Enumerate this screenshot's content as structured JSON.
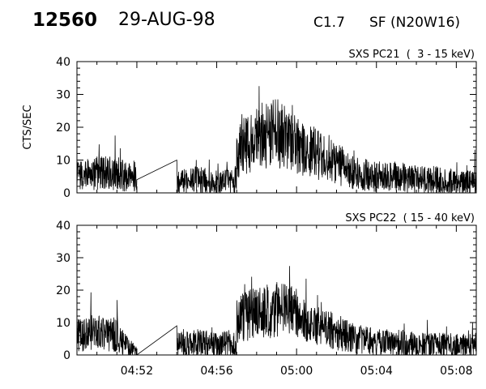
{
  "header": {
    "event_number": "12560",
    "date": "29-AUG-98",
    "goes_class": "C1.7",
    "flare_location": "SF (N20W16)"
  },
  "chart_data": [
    {
      "type": "line",
      "title": "SXS PC21  (  3 - 15 keV)",
      "xlabel": "",
      "ylabel": "CTS/SEC",
      "ylim": [
        0,
        40
      ],
      "yticks": [
        0,
        10,
        20,
        30,
        40
      ],
      "xlim": [
        "04:49",
        "05:09"
      ],
      "xtick_labels": [],
      "grid": false,
      "series": [
        {
          "name": "",
          "x": [
            "04:49",
            "04:50",
            "04:51",
            "04:52",
            "04:52",
            "04:54",
            "04:54",
            "04:55",
            "04:56",
            "04:57",
            "04:57",
            "04:58",
            "04:59",
            "05:00",
            "05:00",
            "05:01",
            "05:02",
            "05:03",
            "05:04",
            "05:05",
            "05:06",
            "05:07",
            "05:08",
            "05:09"
          ],
          "values": [
            5,
            6,
            6,
            4,
            4,
            10,
            3,
            4,
            3,
            4,
            12,
            17,
            18,
            17,
            15,
            12,
            9,
            6,
            5,
            5,
            4,
            4,
            3,
            3
          ]
        }
      ]
    },
    {
      "type": "line",
      "title": "SXS PC22  ( 15 - 40 keV)",
      "xlabel": "",
      "ylabel": "",
      "ylim": [
        0,
        40
      ],
      "yticks": [
        0,
        10,
        20,
        30,
        40
      ],
      "xlim": [
        "04:49",
        "05:09"
      ],
      "xtick_labels": [
        "04:52",
        "04:56",
        "05:00",
        "05:04",
        "05:08"
      ],
      "grid": false,
      "series": [
        {
          "name": "",
          "x": [
            "04:49",
            "04:50",
            "04:51",
            "04:52",
            "04:52",
            "04:54",
            "04:54",
            "04:55",
            "04:56",
            "04:57",
            "04:57",
            "04:58",
            "04:59",
            "05:00",
            "05:00",
            "05:01",
            "05:02",
            "05:03",
            "05:04",
            "05:05",
            "05:06",
            "05:07",
            "05:08",
            "05:09"
          ],
          "values": [
            6,
            7,
            6,
            0,
            0,
            9,
            3,
            4,
            3,
            4,
            11,
            13,
            14,
            13,
            11,
            9,
            7,
            5,
            4,
            4,
            3,
            3,
            3,
            3
          ]
        }
      ]
    }
  ]
}
